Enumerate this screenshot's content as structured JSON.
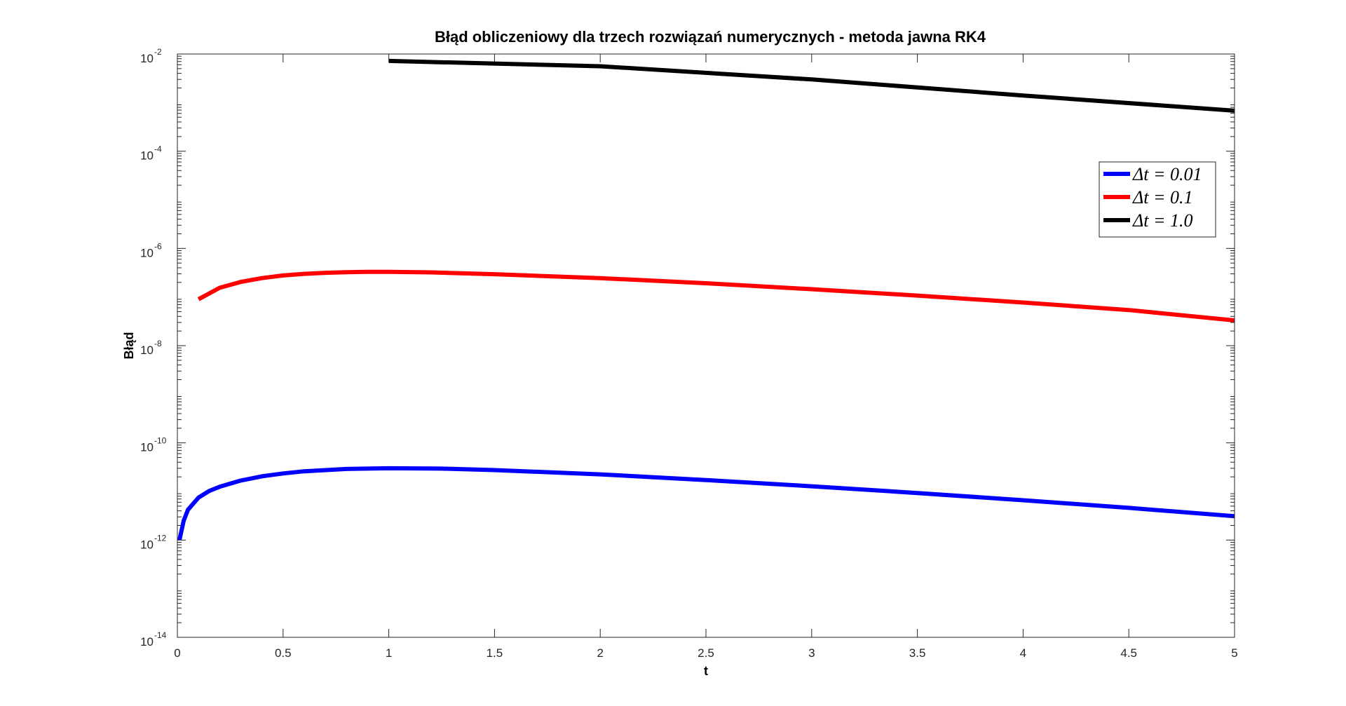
{
  "chart_data": {
    "type": "line",
    "title": "Błąd obliczeniowy dla trzech rozwiązań numerycznych - metoda jawna RK4",
    "xlabel": "t",
    "ylabel": "Błąd",
    "xlim": [
      0,
      5
    ],
    "ylim": [
      1e-14,
      0.01
    ],
    "yscale": "log",
    "x_ticks": [
      "0",
      "0.5",
      "1",
      "1.5",
      "2",
      "2.5",
      "3",
      "3.5",
      "4",
      "4.5",
      "5"
    ],
    "y_ticks": [
      {
        "base": "10",
        "exp": "-2"
      },
      {
        "base": "10",
        "exp": "-4"
      },
      {
        "base": "10",
        "exp": "-6"
      },
      {
        "base": "10",
        "exp": "-8"
      },
      {
        "base": "10",
        "exp": "-10"
      },
      {
        "base": "10",
        "exp": "-12"
      },
      {
        "base": "10",
        "exp": "-14"
      }
    ],
    "grid": false,
    "legend_position": "top-right",
    "series": [
      {
        "name": "Δt = 0.01",
        "color": "#0000ff",
        "x": [
          0.01,
          0.03,
          0.05,
          0.1,
          0.15,
          0.2,
          0.3,
          0.4,
          0.5,
          0.6,
          0.8,
          1.0,
          1.25,
          1.5,
          2.0,
          2.5,
          3.0,
          3.5,
          4.0,
          4.5,
          5.0
        ],
        "y": [
          1e-12,
          2.5e-12,
          4.2e-12,
          7.5e-12,
          1.02e-11,
          1.25e-11,
          1.68e-11,
          2.05e-11,
          2.35e-11,
          2.6e-11,
          2.9e-11,
          3e-11,
          2.95e-11,
          2.75e-11,
          2.25e-11,
          1.72e-11,
          1.28e-11,
          9.3e-12,
          6.6e-12,
          4.6e-12,
          3.1e-12
        ]
      },
      {
        "name": "Δt = 0.1",
        "color": "#ff0000",
        "x": [
          0.1,
          0.2,
          0.3,
          0.4,
          0.5,
          0.6,
          0.7,
          0.8,
          0.9,
          1.0,
          1.2,
          1.5,
          2.0,
          2.5,
          3.0,
          3.5,
          4.0,
          4.5,
          5.0
        ],
        "y": [
          9e-08,
          1.55e-07,
          2.05e-07,
          2.45e-07,
          2.78e-07,
          3e-07,
          3.15e-07,
          3.25e-07,
          3.3e-07,
          3.3e-07,
          3.22e-07,
          2.95e-07,
          2.45e-07,
          1.92e-07,
          1.45e-07,
          1.07e-07,
          7.7e-08,
          5.4e-08,
          3.3e-08
        ]
      },
      {
        "name": "Δt = 1.0",
        "color": "#000000",
        "x": [
          1,
          2,
          3,
          4,
          5
        ],
        "y": [
          0.0072,
          0.0056,
          0.003,
          0.0014,
          0.00068
        ]
      }
    ]
  }
}
